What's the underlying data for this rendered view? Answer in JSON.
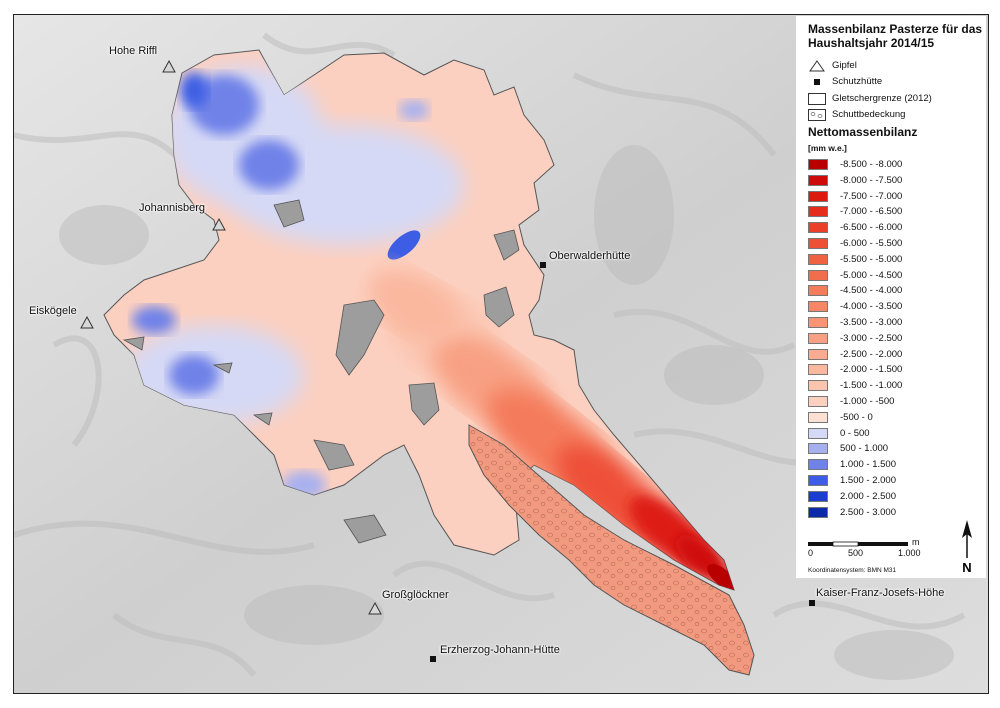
{
  "legend": {
    "title": "Massenbilanz Pasterze für das Haushaltsjahr 2014/15",
    "symbols": [
      {
        "key": "peak",
        "label": "Gipfel"
      },
      {
        "key": "hut",
        "label": "Schutzhütte"
      },
      {
        "key": "border",
        "label": "Gletschergrenze (2012)"
      },
      {
        "key": "debris",
        "label": "Schuttbedeckung"
      }
    ],
    "balance_title": "Nettomassenbilanz",
    "unit": "[mm w.e.]",
    "classes": [
      {
        "label": "-8.500 - -8.000",
        "color": "#b80000"
      },
      {
        "label": "-8.000 - -7.500",
        "color": "#cf0a0a"
      },
      {
        "label": "-7.500 - -7.000",
        "color": "#dd1a12"
      },
      {
        "label": "-7.000 - -6.500",
        "color": "#e52d1d"
      },
      {
        "label": "-6.500 - -6.000",
        "color": "#ea3f2a"
      },
      {
        "label": "-6.000 - -5.500",
        "color": "#ee5037"
      },
      {
        "label": "-5.500 - -5.000",
        "color": "#f06043"
      },
      {
        "label": "-5.000 - -4.500",
        "color": "#f26d4f"
      },
      {
        "label": "-4.500 - -4.000",
        "color": "#f47b5c"
      },
      {
        "label": "-4.000 - -3.500",
        "color": "#f58768"
      },
      {
        "label": "-3.500 - -3.000",
        "color": "#f79475"
      },
      {
        "label": "-3.000 - -2.500",
        "color": "#f8a083"
      },
      {
        "label": "-2.500 - -2.000",
        "color": "#f9ac91"
      },
      {
        "label": "-2.000 - -1.500",
        "color": "#fab89f"
      },
      {
        "label": "-1.500 - -1.000",
        "color": "#fbc4af"
      },
      {
        "label": "-1.000 - -500",
        "color": "#fcd0c0"
      },
      {
        "label": "-500 - 0",
        "color": "#fde0d4"
      },
      {
        "label": "0 - 500",
        "color": "#d6d9f5"
      },
      {
        "label": "500 - 1.000",
        "color": "#a7b0ef"
      },
      {
        "label": "1.000 - 1.500",
        "color": "#6f82e8"
      },
      {
        "label": "1.500 - 2.000",
        "color": "#3d5ee4"
      },
      {
        "label": "2.000 - 2.500",
        "color": "#1a3fcf"
      },
      {
        "label": "2.500 - 3.000",
        "color": "#0a2aa6"
      }
    ],
    "scale": {
      "ticks": [
        "0",
        "500",
        "1.000"
      ],
      "unit": "m"
    },
    "coordinate_system": "Koordinatensystem: BMN M31",
    "north_label": "N"
  },
  "places": {
    "peaks": [
      {
        "name": "Hohe Riffl"
      },
      {
        "name": "Johannisberg"
      },
      {
        "name": "Eiskögele"
      },
      {
        "name": "Großglöckner"
      }
    ],
    "huts": [
      {
        "name": "Oberwalderhütte"
      },
      {
        "name": "Erzherzog-Johann-Hütte"
      },
      {
        "name": "Kaiser-Franz-Josefs-Höhe"
      }
    ]
  },
  "colors": {
    "terrain": "#d9d9d9",
    "debris": "#f29a80",
    "glacier_outline": "#555555"
  }
}
